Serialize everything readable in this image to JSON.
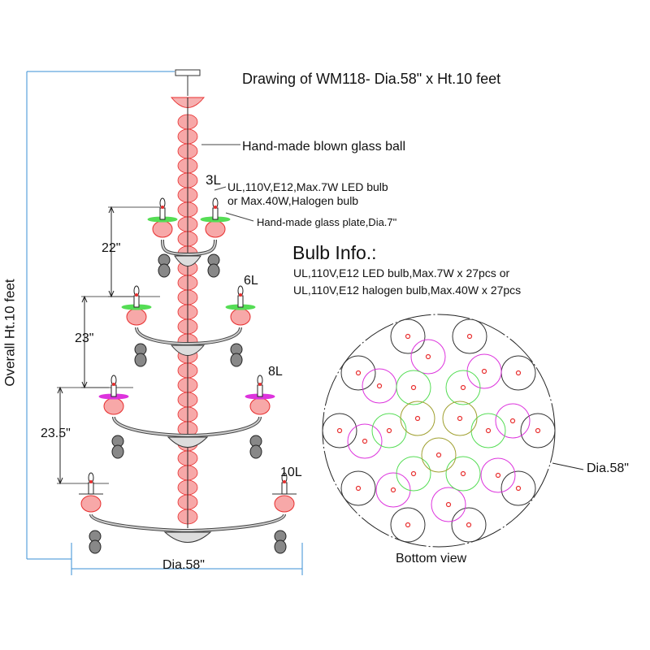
{
  "title": "Drawing of WM118- Dia.58\" x Ht.10 feet",
  "callouts": {
    "glass_ball": "Hand-made blown glass ball",
    "bulb_line1": "UL,110V,E12,Max.7W LED bulb",
    "bulb_line2": "or Max.40W,Halogen bulb",
    "glass_plate": "Hand-made glass plate,Dia.7\""
  },
  "tiers": [
    {
      "lights": "3L",
      "spacing": "22\""
    },
    {
      "lights": "6L",
      "spacing": "23\""
    },
    {
      "lights": "8L",
      "spacing": "23.5\""
    },
    {
      "lights": "10L"
    }
  ],
  "bulb_info": {
    "heading": "Bulb Info.:",
    "line1": "UL,110V,E12 LED bulb,Max.7W x 27pcs or",
    "line2": "UL,110V,E12 halogen bulb,Max.40W x 27pcs"
  },
  "overall_height": "Overall Ht.10 feet",
  "diameter_label": "Dia.58\"",
  "bottom_view": {
    "label": "Bottom view",
    "diameter_label": "Dia.58\""
  },
  "colors": {
    "tier_3L": "#a0a030",
    "tier_6L": "#55dd55",
    "tier_8L": "#dd33dd",
    "tier_10L": "#333333",
    "glass": "#e83030",
    "dimension_blue": "#3a8fd4"
  }
}
